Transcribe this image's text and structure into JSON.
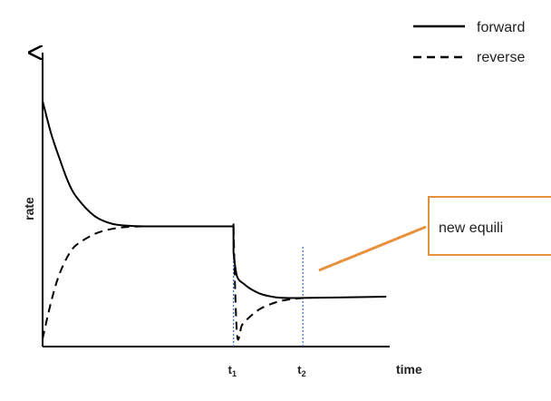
{
  "chart_data": {
    "type": "line",
    "ylabel": "rate",
    "xlabel": "time",
    "xlim": [
      0,
      10
    ],
    "ylim": [
      0,
      10
    ],
    "legend_position": "top-right",
    "x_ticks": [
      {
        "label": "t",
        "sub": "1",
        "value": 5.5
      },
      {
        "label": "t",
        "sub": "2",
        "value": 7.5
      }
    ],
    "series": [
      {
        "name": "forward",
        "style": "solid",
        "segments": [
          {
            "x": [
              0,
              0.25,
              0.5,
              0.75,
              1,
              1.5,
              2,
              2.5,
              3,
              4,
              5,
              5.5
            ],
            "y": [
              9.6,
              8.3,
              7.3,
              6.4,
              5.8,
              5.1,
              4.8,
              4.72,
              4.7,
              4.7,
              4.7,
              4.7
            ]
          },
          {
            "x": [
              5.5,
              5.6,
              5.8,
              6.0,
              6.3,
              6.7,
              7.0,
              7.5,
              8.5,
              9.9
            ],
            "y": [
              3.7,
              2.75,
              2.45,
              2.25,
              2.05,
              1.93,
              1.9,
              1.9,
              1.92,
              1.95
            ]
          }
        ]
      },
      {
        "name": "reverse",
        "style": "dashed",
        "segments": [
          {
            "x": [
              0,
              0.2,
              0.4,
              0.6,
              0.8,
              1,
              1.5,
              2,
              2.5,
              3,
              4,
              5,
              5.5
            ],
            "y": [
              0.3,
              1.5,
              2.5,
              3.2,
              3.7,
              4.0,
              4.4,
              4.6,
              4.68,
              4.7,
              4.7,
              4.7,
              4.7
            ]
          },
          {
            "x": [
              5.5,
              5.6,
              5.75,
              6.0,
              6.3,
              6.7,
              7.0,
              7.5
            ],
            "y": [
              4.7,
              0.5,
              0.85,
              1.2,
              1.5,
              1.72,
              1.82,
              1.9
            ]
          }
        ]
      }
    ],
    "annotation": {
      "text": "new equili",
      "border_color": "#e8913c",
      "pointer_color": "#e8913c"
    },
    "colors": {
      "curve": "#000000",
      "axis": "#000000",
      "marker_line": "#3b6fd6"
    }
  }
}
